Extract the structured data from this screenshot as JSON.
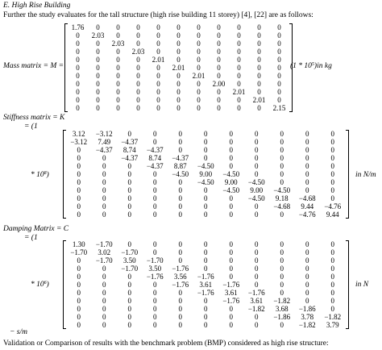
{
  "heading": "E.    High Rise Building",
  "intro": "Further the study evaluates for the tall structure (high rise building 11 storey) [4], [22] are as follows:",
  "mass": {
    "label": "Mass matrix = M =",
    "scale_pre": "(1 * 10",
    "scale_exp": "5",
    "scale_post": ")in kg",
    "rows": [
      [
        "1.76",
        "0",
        "0",
        "0",
        "0",
        "0",
        "0",
        "0",
        "0",
        "0",
        "0"
      ],
      [
        "0",
        "2.03",
        "0",
        "0",
        "0",
        "0",
        "0",
        "0",
        "0",
        "0",
        "0"
      ],
      [
        "0",
        "0",
        "2.03",
        "0",
        "0",
        "0",
        "0",
        "0",
        "0",
        "0",
        "0"
      ],
      [
        "0",
        "0",
        "0",
        "2.03",
        "0",
        "0",
        "0",
        "0",
        "0",
        "0",
        "0"
      ],
      [
        "0",
        "0",
        "0",
        "0",
        "2.01",
        "0",
        "0",
        "0",
        "0",
        "0",
        "0"
      ],
      [
        "0",
        "0",
        "0",
        "0",
        "0",
        "2.01",
        "0",
        "0",
        "0",
        "0",
        "0"
      ],
      [
        "0",
        "0",
        "0",
        "0",
        "0",
        "0",
        "2.01",
        "0",
        "0",
        "0",
        "0"
      ],
      [
        "0",
        "0",
        "0",
        "0",
        "0",
        "0",
        "0",
        "2.00",
        "0",
        "0",
        "0"
      ],
      [
        "0",
        "0",
        "0",
        "0",
        "0",
        "0",
        "0",
        "0",
        "2.01",
        "0",
        "0"
      ],
      [
        "0",
        "0",
        "0",
        "0",
        "0",
        "0",
        "0",
        "0",
        "0",
        "2.01",
        "0"
      ],
      [
        "0",
        "0",
        "0",
        "0",
        "0",
        "0",
        "0",
        "0",
        "0",
        "0",
        "2.15"
      ]
    ]
  },
  "stiffness": {
    "label": "Stiffness matrix = K",
    "prefix": "= (1",
    "scale_pre": "* 10",
    "scale_exp": "8",
    "scale_post": ")",
    "unit": "in N/m",
    "rows": [
      [
        "3.12",
        "−3.12",
        "0",
        "0",
        "0",
        "0",
        "0",
        "0",
        "0",
        "0",
        "0"
      ],
      [
        "−3.12",
        "7.49",
        "−4.37",
        "0",
        "0",
        "0",
        "0",
        "0",
        "0",
        "0",
        "0"
      ],
      [
        "0",
        "−4.37",
        "8.74",
        "−4.37",
        "0",
        "0",
        "0",
        "0",
        "0",
        "0",
        "0"
      ],
      [
        "0",
        "0",
        "−4.37",
        "8.74",
        "−4.37",
        "0",
        "0",
        "0",
        "0",
        "0",
        "0"
      ],
      [
        "0",
        "0",
        "0",
        "−4.37",
        "8.87",
        "−4.50",
        "0",
        "0",
        "0",
        "0",
        "0"
      ],
      [
        "0",
        "0",
        "0",
        "0",
        "−4.50",
        "9.00",
        "−4.50",
        "0",
        "0",
        "0",
        "0"
      ],
      [
        "0",
        "0",
        "0",
        "0",
        "0",
        "−4.50",
        "9.00",
        "−4.50",
        "0",
        "0",
        "0"
      ],
      [
        "0",
        "0",
        "0",
        "0",
        "0",
        "0",
        "−4.50",
        "9.00",
        "−4.50",
        "0",
        "0"
      ],
      [
        "0",
        "0",
        "0",
        "0",
        "0",
        "0",
        "0",
        "−4.50",
        "9.18",
        "−4.68",
        "0"
      ],
      [
        "0",
        "0",
        "0",
        "0",
        "0",
        "0",
        "0",
        "0",
        "−4.68",
        "9.44",
        "−4.76"
      ],
      [
        "0",
        "0",
        "0",
        "0",
        "0",
        "0",
        "0",
        "0",
        "0",
        "−4.76",
        "9.44"
      ]
    ]
  },
  "damping": {
    "label": "Damping Matrix = C",
    "prefix": "= (1",
    "scale_pre": "* 10",
    "scale_exp": "6",
    "scale_post": ")",
    "unit": "in N",
    "unit_tail": "− s/m",
    "rows": [
      [
        "1.30",
        "−1.70",
        "0",
        "0",
        "0",
        "0",
        "0",
        "0",
        "0",
        "0",
        "0"
      ],
      [
        "−1.70",
        "3.02",
        "−1.70",
        "0",
        "0",
        "0",
        "0",
        "0",
        "0",
        "0",
        "0"
      ],
      [
        "0",
        "−1.70",
        "3.50",
        "−1.70",
        "0",
        "0",
        "0",
        "0",
        "0",
        "0",
        "0"
      ],
      [
        "0",
        "0",
        "−1.70",
        "3.50",
        "−1.76",
        "0",
        "0",
        "0",
        "0",
        "0",
        "0"
      ],
      [
        "0",
        "0",
        "0",
        "−1.76",
        "3.56",
        "−1.76",
        "0",
        "0",
        "0",
        "0",
        "0"
      ],
      [
        "0",
        "0",
        "0",
        "0",
        "−1.76",
        "3.61",
        "−1.76",
        "0",
        "0",
        "0",
        "0"
      ],
      [
        "0",
        "0",
        "0",
        "0",
        "0",
        "−1.76",
        "3.61",
        "−1.76",
        "0",
        "0",
        "0"
      ],
      [
        "0",
        "0",
        "0",
        "0",
        "0",
        "0",
        "−1.76",
        "3.61",
        "−1.82",
        "0",
        "0"
      ],
      [
        "0",
        "0",
        "0",
        "0",
        "0",
        "0",
        "0",
        "−1.82",
        "3.68",
        "−1.86",
        "0"
      ],
      [
        "0",
        "0",
        "0",
        "0",
        "0",
        "0",
        "0",
        "0",
        "−1.86",
        "3.78",
        "−1.82"
      ],
      [
        "0",
        "0",
        "0",
        "0",
        "0",
        "0",
        "0",
        "0",
        "0",
        "−1.82",
        "3.79"
      ]
    ]
  },
  "closing": "Validation or Comparison of results with the benchmark problem (BMP) considered as high rise structure:"
}
